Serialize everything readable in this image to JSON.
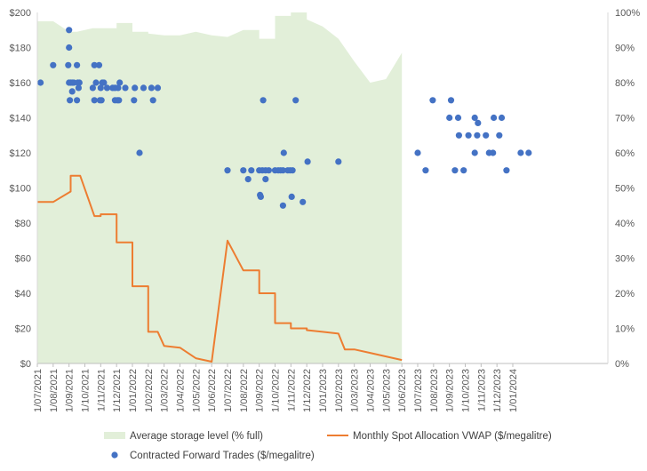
{
  "chart_data": {
    "type": "combo",
    "title": "",
    "x_axis": {
      "type": "date",
      "start_month_index": 0,
      "end_month_index": 36,
      "tick_labels": [
        "1/07/2021",
        "1/08/2021",
        "1/09/2021",
        "1/10/2021",
        "1/11/2021",
        "1/12/2021",
        "1/01/2022",
        "1/02/2022",
        "1/03/2022",
        "1/04/2022",
        "1/05/2022",
        "1/06/2022",
        "1/07/2022",
        "1/08/2022",
        "1/09/2022",
        "1/10/2022",
        "1/11/2022",
        "1/12/2022",
        "1/01/2023",
        "1/02/2023",
        "1/03/2023",
        "1/04/2023",
        "1/05/2023",
        "1/06/2023",
        "1/07/2023",
        "1/08/2023",
        "1/09/2023",
        "1/10/2023",
        "1/11/2023",
        "1/12/2023",
        "1/01/2024"
      ]
    },
    "y_left": {
      "min": 0,
      "max": 200,
      "step": 20,
      "tick_labels": [
        "$0",
        "$20",
        "$40",
        "$60",
        "$80",
        "$100",
        "$120",
        "$140",
        "$160",
        "$180",
        "$200"
      ]
    },
    "y_right": {
      "min": 0,
      "max": 100,
      "step": 10,
      "tick_labels": [
        "0%",
        "10%",
        "20%",
        "30%",
        "40%",
        "50%",
        "60%",
        "70%",
        "80%",
        "90%",
        "100%"
      ]
    },
    "series": [
      {
        "name": "Average storage level (% full)",
        "type": "area",
        "axis": "right",
        "color": "#e2efd9",
        "points": [
          [
            0,
            97.5
          ],
          [
            1,
            97.5
          ],
          [
            1.5,
            96
          ],
          [
            2,
            94.5
          ],
          [
            2.5,
            94.5
          ],
          [
            3,
            95
          ],
          [
            3.5,
            95.5
          ],
          [
            4,
            95.5
          ],
          [
            5,
            95.5
          ],
          [
            5,
            97
          ],
          [
            6,
            97
          ],
          [
            6,
            94.5
          ],
          [
            7,
            94.5
          ],
          [
            7,
            94
          ],
          [
            8,
            93.5
          ],
          [
            9,
            93.5
          ],
          [
            10,
            94.5
          ],
          [
            11,
            93.5
          ],
          [
            12,
            93
          ],
          [
            13,
            95
          ],
          [
            14,
            95
          ],
          [
            14,
            92.5
          ],
          [
            15,
            92.5
          ],
          [
            15,
            99
          ],
          [
            16,
            99
          ],
          [
            16,
            100
          ],
          [
            17,
            100
          ],
          [
            17,
            98
          ],
          [
            18,
            96
          ],
          [
            19,
            92.5
          ],
          [
            20,
            86
          ],
          [
            21,
            80
          ],
          [
            22,
            81
          ],
          [
            23,
            88.5
          ],
          [
            23,
            0
          ],
          [
            0,
            0
          ]
        ]
      },
      {
        "name": "Monthly Spot Allocation VWAP ($/megalitre)",
        "type": "line",
        "axis": "left",
        "color": "#ed7d31",
        "points": [
          [
            0,
            92
          ],
          [
            1,
            92
          ],
          [
            2.1,
            98
          ],
          [
            2.1,
            107
          ],
          [
            2.7,
            107
          ],
          [
            3.6,
            84
          ],
          [
            4,
            84
          ],
          [
            4,
            85
          ],
          [
            5,
            85
          ],
          [
            5,
            69
          ],
          [
            6,
            69
          ],
          [
            6,
            44
          ],
          [
            7,
            44
          ],
          [
            7,
            18
          ],
          [
            7.6,
            18
          ],
          [
            8,
            10
          ],
          [
            9,
            9
          ],
          [
            10,
            3
          ],
          [
            11,
            1
          ],
          [
            12,
            70
          ],
          [
            13,
            53
          ],
          [
            14,
            53
          ],
          [
            14,
            40
          ],
          [
            15,
            40
          ],
          [
            15,
            23
          ],
          [
            16,
            23
          ],
          [
            16,
            20
          ],
          [
            17,
            20
          ],
          [
            17,
            19
          ],
          [
            18,
            18
          ],
          [
            19,
            17
          ],
          [
            19.4,
            8
          ],
          [
            20,
            8
          ],
          [
            21,
            6
          ],
          [
            22,
            4
          ],
          [
            23,
            2
          ]
        ]
      },
      {
        "name": "Contracted Forward Trades ($/megalitre)",
        "type": "scatter",
        "axis": "left",
        "color": "#4472c4",
        "points": [
          [
            0.2,
            160
          ],
          [
            1.0,
            170
          ],
          [
            2.0,
            190
          ],
          [
            2.0,
            180
          ],
          [
            1.95,
            170
          ],
          [
            2.0,
            160
          ],
          [
            2.1,
            160
          ],
          [
            2.2,
            160
          ],
          [
            2.3,
            160
          ],
          [
            2.05,
            150
          ],
          [
            2.2,
            155
          ],
          [
            2.5,
            170
          ],
          [
            2.55,
            160
          ],
          [
            2.65,
            160
          ],
          [
            2.6,
            157
          ],
          [
            2.5,
            150
          ],
          [
            3.6,
            170
          ],
          [
            3.9,
            170
          ],
          [
            3.5,
            157
          ],
          [
            3.7,
            160
          ],
          [
            3.6,
            150
          ],
          [
            3.95,
            150
          ],
          [
            4.05,
            150
          ],
          [
            4.0,
            157
          ],
          [
            4.1,
            160
          ],
          [
            4.2,
            160
          ],
          [
            4.4,
            157
          ],
          [
            4.75,
            157
          ],
          [
            4.9,
            157
          ],
          [
            5.2,
            160
          ],
          [
            4.9,
            150
          ],
          [
            5.05,
            150
          ],
          [
            5.15,
            150
          ],
          [
            5.1,
            157
          ],
          [
            5.55,
            157
          ],
          [
            6.1,
            150
          ],
          [
            6.15,
            157
          ],
          [
            6.45,
            120
          ],
          [
            6.7,
            157
          ],
          [
            7.2,
            157
          ],
          [
            7.3,
            150
          ],
          [
            7.6,
            157
          ],
          [
            12.0,
            110
          ],
          [
            13.0,
            110
          ],
          [
            13.3,
            105
          ],
          [
            13.5,
            110
          ],
          [
            14.0,
            110
          ],
          [
            14.05,
            96
          ],
          [
            14.1,
            95
          ],
          [
            14.2,
            110
          ],
          [
            14.4,
            110
          ],
          [
            14.25,
            150
          ],
          [
            14.4,
            105
          ],
          [
            14.6,
            110
          ],
          [
            15.0,
            110
          ],
          [
            15.2,
            110
          ],
          [
            15.35,
            110
          ],
          [
            15.5,
            110
          ],
          [
            15.55,
            120
          ],
          [
            15.5,
            90
          ],
          [
            15.8,
            110
          ],
          [
            15.95,
            110
          ],
          [
            16.1,
            110
          ],
          [
            16.05,
            95
          ],
          [
            16.3,
            150
          ],
          [
            16.75,
            92
          ],
          [
            17.05,
            115
          ],
          [
            19.0,
            115
          ],
          [
            24.0,
            120
          ],
          [
            24.5,
            110
          ],
          [
            24.95,
            150
          ],
          [
            26.1,
            150
          ],
          [
            26.35,
            110
          ],
          [
            26.55,
            140
          ],
          [
            26.6,
            130
          ],
          [
            26.0,
            140
          ],
          [
            26.9,
            110
          ],
          [
            27.2,
            130
          ],
          [
            27.75,
            130
          ],
          [
            27.6,
            140
          ],
          [
            27.8,
            137
          ],
          [
            27.6,
            120
          ],
          [
            28.3,
            130
          ],
          [
            28.5,
            120
          ],
          [
            28.8,
            140
          ],
          [
            28.75,
            120
          ],
          [
            29.15,
            130
          ],
          [
            29.3,
            140
          ],
          [
            29.6,
            110
          ],
          [
            30.5,
            120
          ],
          [
            31.0,
            120
          ]
        ]
      }
    ],
    "legend": {
      "position": "bottom",
      "entries": [
        "Average storage level (% full)",
        "Monthly Spot Allocation VWAP ($/megalitre)",
        "Contracted Forward Trades ($/megalitre)"
      ]
    }
  }
}
